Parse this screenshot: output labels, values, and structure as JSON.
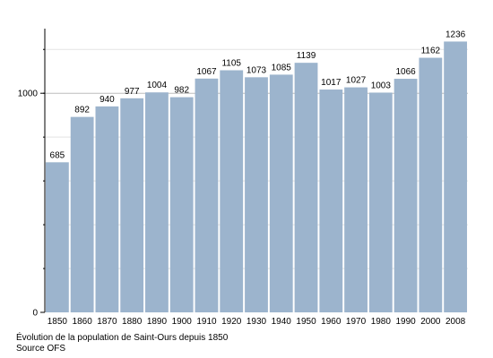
{
  "chart_data": {
    "type": "bar",
    "categories": [
      "1850",
      "1860",
      "1870",
      "1880",
      "1890",
      "1900",
      "1910",
      "1920",
      "1930",
      "1940",
      "1950",
      "1960",
      "1970",
      "1980",
      "1990",
      "2000",
      "2008"
    ],
    "values": [
      685,
      892,
      940,
      977,
      1004,
      982,
      1067,
      1105,
      1073,
      1085,
      1139,
      1017,
      1027,
      1003,
      1066,
      1162,
      1236
    ],
    "data_labels": [
      "685",
      "892",
      "940",
      "977",
      "1004",
      "982",
      "1067",
      "1105",
      "1073",
      "1085",
      "1139",
      "1017",
      "1027",
      "1003",
      "1066",
      "1162",
      "1236"
    ],
    "title": "",
    "xlabel": "",
    "ylabel": "",
    "ylim": [
      0,
      1300
    ],
    "y_tick_labels": [
      {
        "value": 0,
        "label": "0"
      },
      {
        "value": 1000,
        "label": "1000"
      }
    ],
    "grid": true,
    "bar_color": "#9cb4cd"
  },
  "caption": {
    "line1": "Évolution de la population de Saint-Ours depuis 1850",
    "line2": "Source OFS"
  }
}
